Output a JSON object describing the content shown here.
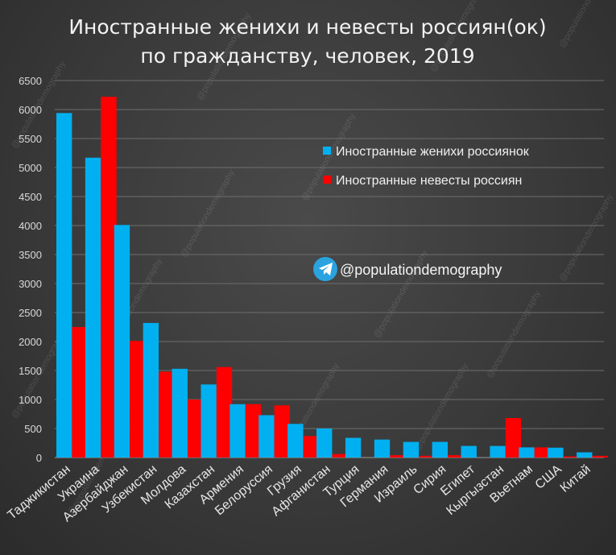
{
  "chart_data": {
    "type": "bar",
    "title": "Иностранные женихи и невесты россиян(ок) по гражданству, человек, 2019",
    "title_lines": [
      "Иностранные женихи и невесты россиян(ок)",
      "по гражданству, человек, 2019"
    ],
    "categories": [
      "Таджикистан",
      "Украина",
      "Азербайджан",
      "Узбекистан",
      "Молдова",
      "Казахстан",
      "Армения",
      "Белоруссия",
      "Грузия",
      "Афганистан",
      "Турция",
      "Германия",
      "Израиль",
      "Сирия",
      "Египет",
      "Кыргызстан",
      "Вьетнам",
      "США",
      "Китай"
    ],
    "series": [
      {
        "name": "Иностранные женихи россиянок",
        "color": "#00b0f0",
        "values": [
          5940,
          5170,
          4010,
          2320,
          1530,
          1260,
          920,
          730,
          580,
          500,
          340,
          310,
          270,
          270,
          200,
          200,
          175,
          170,
          90
        ]
      },
      {
        "name": "Иностранные невесты россиян",
        "color": "#ff0000",
        "values": [
          2250,
          6220,
          2010,
          1480,
          1000,
          1560,
          920,
          900,
          370,
          60,
          0,
          40,
          30,
          40,
          0,
          680,
          175,
          20,
          30
        ]
      }
    ],
    "ylim": [
      0,
      6500
    ],
    "yticks": [
      "0",
      "500",
      "1000",
      "1500",
      "2000",
      "2500",
      "3000",
      "3500",
      "4000",
      "4500",
      "5000",
      "5500",
      "6000",
      "6500"
    ],
    "grid": true,
    "legend_position": "upper-right"
  },
  "channel": {
    "label": "@populationdemography",
    "icon": "telegram-icon"
  },
  "watermark_text": "@populationdemography"
}
